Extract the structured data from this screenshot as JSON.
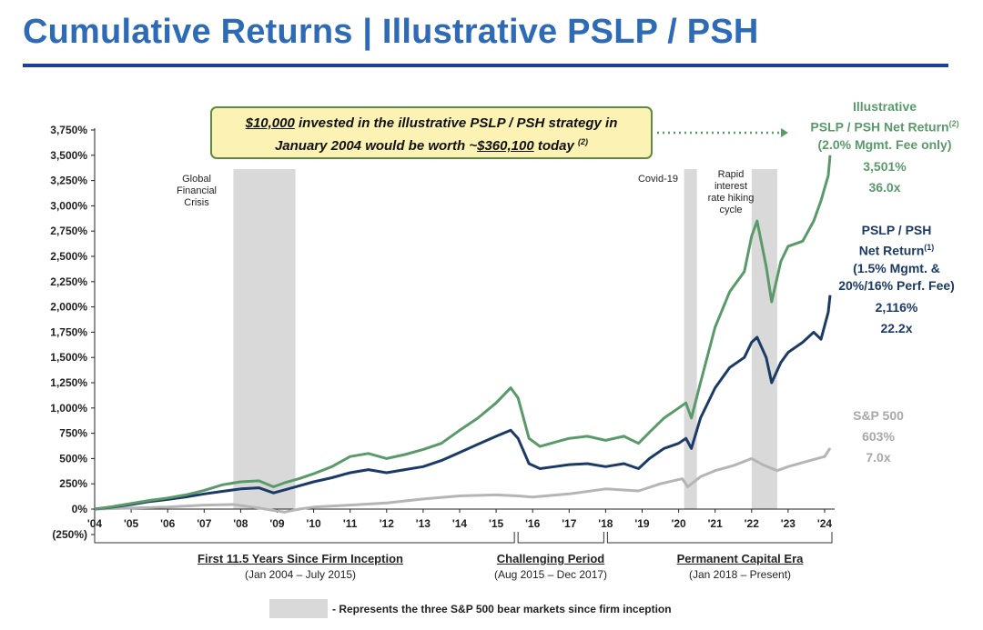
{
  "title": "Cumulative Returns | Illustrative PSLP / PSH",
  "callout": {
    "amount": "$10,000",
    "text1": " invested in the illustrative PSLP / PSH strategy in",
    "text2": "January 2004 would be worth ~",
    "value": "$360,100",
    "text3": " today ",
    "note": "(2)"
  },
  "shaded_periods": [
    {
      "label": "Global Financial Crisis",
      "start": 2007.8,
      "end": 2009.5
    },
    {
      "label": "Covid-19",
      "start": 2020.15,
      "end": 2020.5
    },
    {
      "label": "Rapid interest rate hiking cycle",
      "start": 2022.0,
      "end": 2022.7
    }
  ],
  "series_labels": {
    "illustrative": {
      "l1": "Illustrative",
      "l2": "PSLP / PSH Net Return",
      "note": "(2)",
      "l3": "(2.0% Mgmt. Fee only)",
      "pct": "3,501%",
      "mult": "36.0x"
    },
    "pslp": {
      "l1": "PSLP / PSH",
      "l2": "Net Return",
      "note": "(1)",
      "l3": "(1.5% Mgmt. &",
      "l4": "20%/16% Perf. Fee)",
      "pct": "2,116%",
      "mult": "22.2x"
    },
    "sp500": {
      "l1": "S&P 500",
      "pct": "603%",
      "mult": "7.0x"
    }
  },
  "periods": [
    {
      "heading": "First 11.5 Years Since Firm Inception",
      "sub": "(Jan 2004 – July 2015)"
    },
    {
      "heading": "Challenging Period",
      "sub": "(Aug 2015 – Dec 2017)"
    },
    {
      "heading": "Permanent Capital Era",
      "sub": "(Jan 2018 – Present)"
    }
  ],
  "legend": "- Represents the three S&P 500 bear markets since firm inception",
  "colors": {
    "illustrative": "#5a9a6a",
    "pslp": "#1b3a66",
    "sp500": "#b5b5b5",
    "shade": "#d9d9d9"
  },
  "chart_data": {
    "type": "line",
    "title": "Cumulative Returns | Illustrative PSLP / PSH",
    "xlabel": "",
    "ylabel": "",
    "x_ticks": [
      "'04",
      "'05",
      "'06",
      "'07",
      "'08",
      "'09",
      "'10",
      "'11",
      "'12",
      "'13",
      "'14",
      "'15",
      "'16",
      "'17",
      "'18",
      "'19",
      "'20",
      "'21",
      "'22",
      "'23",
      "'24"
    ],
    "y_ticks": [
      "(250%)",
      "0%",
      "250%",
      "500%",
      "750%",
      "1,000%",
      "1,250%",
      "1,500%",
      "1,750%",
      "2,000%",
      "2,250%",
      "2,500%",
      "2,750%",
      "3,000%",
      "3,250%",
      "3,500%",
      "3,750%"
    ],
    "xlim": [
      2004,
      2024.2
    ],
    "ylim": [
      -250,
      3750
    ],
    "series": [
      {
        "name": "Illustrative PSLP / PSH Net Return",
        "points": [
          [
            2004,
            0
          ],
          [
            2004.5,
            25
          ],
          [
            2005,
            55
          ],
          [
            2005.5,
            85
          ],
          [
            2006,
            110
          ],
          [
            2006.5,
            140
          ],
          [
            2007,
            185
          ],
          [
            2007.5,
            240
          ],
          [
            2008,
            270
          ],
          [
            2008.5,
            280
          ],
          [
            2008.9,
            220
          ],
          [
            2009.2,
            260
          ],
          [
            2009.6,
            300
          ],
          [
            2010,
            350
          ],
          [
            2010.5,
            420
          ],
          [
            2011,
            520
          ],
          [
            2011.5,
            550
          ],
          [
            2012,
            500
          ],
          [
            2012.5,
            540
          ],
          [
            2013,
            590
          ],
          [
            2013.5,
            650
          ],
          [
            2014,
            780
          ],
          [
            2014.5,
            900
          ],
          [
            2015,
            1050
          ],
          [
            2015.4,
            1200
          ],
          [
            2015.6,
            1100
          ],
          [
            2015.9,
            700
          ],
          [
            2016.2,
            620
          ],
          [
            2016.6,
            660
          ],
          [
            2017,
            700
          ],
          [
            2017.5,
            720
          ],
          [
            2018,
            680
          ],
          [
            2018.5,
            720
          ],
          [
            2018.9,
            650
          ],
          [
            2019.2,
            760
          ],
          [
            2019.6,
            900
          ],
          [
            2020,
            1000
          ],
          [
            2020.2,
            1050
          ],
          [
            2020.35,
            900
          ],
          [
            2020.6,
            1250
          ],
          [
            2021,
            1800
          ],
          [
            2021.4,
            2150
          ],
          [
            2021.8,
            2350
          ],
          [
            2022,
            2700
          ],
          [
            2022.15,
            2850
          ],
          [
            2022.4,
            2400
          ],
          [
            2022.55,
            2050
          ],
          [
            2022.8,
            2450
          ],
          [
            2023,
            2600
          ],
          [
            2023.4,
            2650
          ],
          [
            2023.7,
            2850
          ],
          [
            2023.9,
            3050
          ],
          [
            2024.1,
            3300
          ],
          [
            2024.15,
            3501
          ]
        ]
      },
      {
        "name": "PSLP / PSH Net Return",
        "points": [
          [
            2004,
            0
          ],
          [
            2004.5,
            20
          ],
          [
            2005,
            45
          ],
          [
            2005.5,
            75
          ],
          [
            2006,
            95
          ],
          [
            2006.5,
            120
          ],
          [
            2007,
            150
          ],
          [
            2007.5,
            175
          ],
          [
            2008,
            200
          ],
          [
            2008.5,
            210
          ],
          [
            2008.9,
            160
          ],
          [
            2009.2,
            190
          ],
          [
            2009.6,
            230
          ],
          [
            2010,
            270
          ],
          [
            2010.5,
            310
          ],
          [
            2011,
            360
          ],
          [
            2011.5,
            390
          ],
          [
            2012,
            360
          ],
          [
            2012.5,
            390
          ],
          [
            2013,
            420
          ],
          [
            2013.5,
            480
          ],
          [
            2014,
            560
          ],
          [
            2014.5,
            640
          ],
          [
            2015,
            720
          ],
          [
            2015.4,
            780
          ],
          [
            2015.6,
            700
          ],
          [
            2015.9,
            450
          ],
          [
            2016.2,
            400
          ],
          [
            2016.6,
            420
          ],
          [
            2017,
            440
          ],
          [
            2017.5,
            450
          ],
          [
            2018,
            420
          ],
          [
            2018.5,
            450
          ],
          [
            2018.9,
            400
          ],
          [
            2019.2,
            500
          ],
          [
            2019.6,
            600
          ],
          [
            2020,
            650
          ],
          [
            2020.2,
            700
          ],
          [
            2020.35,
            600
          ],
          [
            2020.6,
            900
          ],
          [
            2021,
            1200
          ],
          [
            2021.4,
            1400
          ],
          [
            2021.8,
            1500
          ],
          [
            2022,
            1650
          ],
          [
            2022.15,
            1700
          ],
          [
            2022.4,
            1500
          ],
          [
            2022.55,
            1250
          ],
          [
            2022.8,
            1450
          ],
          [
            2023,
            1550
          ],
          [
            2023.4,
            1650
          ],
          [
            2023.7,
            1750
          ],
          [
            2023.9,
            1680
          ],
          [
            2024.1,
            1950
          ],
          [
            2024.15,
            2116
          ]
        ]
      },
      {
        "name": "S&P 500",
        "points": [
          [
            2004,
            0
          ],
          [
            2005,
            10
          ],
          [
            2006,
            20
          ],
          [
            2007,
            40
          ],
          [
            2007.8,
            45
          ],
          [
            2008.5,
            10
          ],
          [
            2009.2,
            -30
          ],
          [
            2009.6,
            0
          ],
          [
            2010,
            20
          ],
          [
            2011,
            40
          ],
          [
            2012,
            60
          ],
          [
            2013,
            100
          ],
          [
            2014,
            130
          ],
          [
            2015,
            140
          ],
          [
            2015.6,
            130
          ],
          [
            2016,
            120
          ],
          [
            2017,
            150
          ],
          [
            2018,
            200
          ],
          [
            2018.9,
            180
          ],
          [
            2019.5,
            250
          ],
          [
            2020.1,
            300
          ],
          [
            2020.25,
            220
          ],
          [
            2020.6,
            320
          ],
          [
            2021,
            380
          ],
          [
            2021.5,
            430
          ],
          [
            2022,
            500
          ],
          [
            2022.3,
            440
          ],
          [
            2022.7,
            380
          ],
          [
            2023,
            420
          ],
          [
            2023.5,
            470
          ],
          [
            2024,
            520
          ],
          [
            2024.15,
            603
          ]
        ]
      }
    ]
  }
}
